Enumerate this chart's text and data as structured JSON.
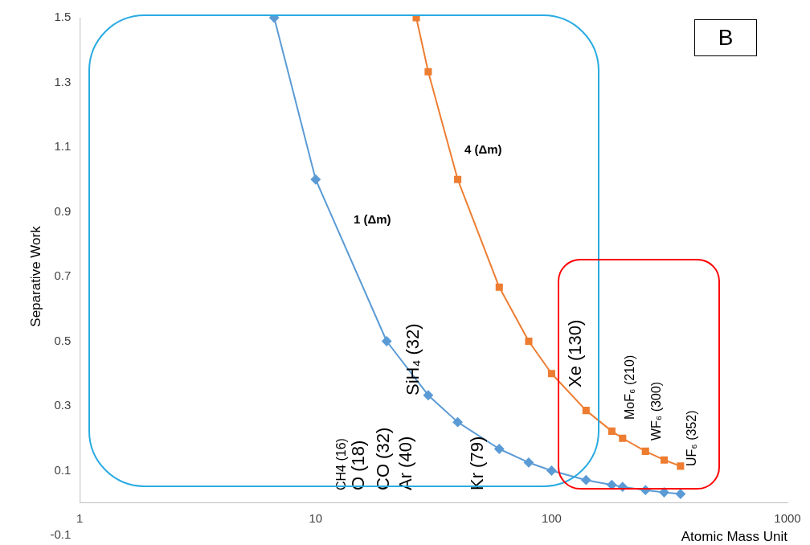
{
  "chart_data": {
    "type": "line",
    "xlabel": "Atomic Mass Unit",
    "ylabel": "Separative Work",
    "log": "x",
    "grid": false,
    "legend": false,
    "xlim": [
      1,
      1000
    ],
    "xticks": [
      1,
      10,
      100,
      1000
    ],
    "ylim": [
      -0.1,
      1.5
    ],
    "yticks": [
      -0.1,
      0.1,
      0.3,
      0.5,
      0.7,
      0.9,
      1.1,
      1.3,
      1.5
    ],
    "series": [
      {
        "color": "#5b9bd5",
        "marker": "diamond",
        "x": [
          6.67,
          10,
          20,
          30,
          40,
          60,
          80,
          100,
          140,
          180,
          200,
          250,
          300,
          352
        ],
        "values": [
          1.5,
          1.0,
          0.5,
          0.333,
          0.25,
          0.167,
          0.125,
          0.1,
          0.071,
          0.056,
          0.05,
          0.04,
          0.033,
          0.028
        ]
      },
      {
        "color": "#ed7d31",
        "marker": "square",
        "x": [
          26.7,
          30,
          40,
          60,
          80,
          100,
          140,
          180,
          200,
          250,
          300,
          352
        ],
        "values": [
          1.5,
          1.333,
          1.0,
          0.667,
          0.5,
          0.4,
          0.286,
          0.222,
          0.2,
          0.16,
          0.133,
          0.114
        ]
      }
    ],
    "annotations": [
      "CH4 (16)",
      "O (18)",
      "CO (32)",
      "Ar (40)",
      "Kr (79)",
      "SiH₄ (32)",
      "Xe (130)",
      "MoF₆ (210)",
      "WF₆ (300)",
      "UF₆ (352)",
      "1 (Δm)",
      "4 (Δm)",
      "B"
    ]
  }
}
